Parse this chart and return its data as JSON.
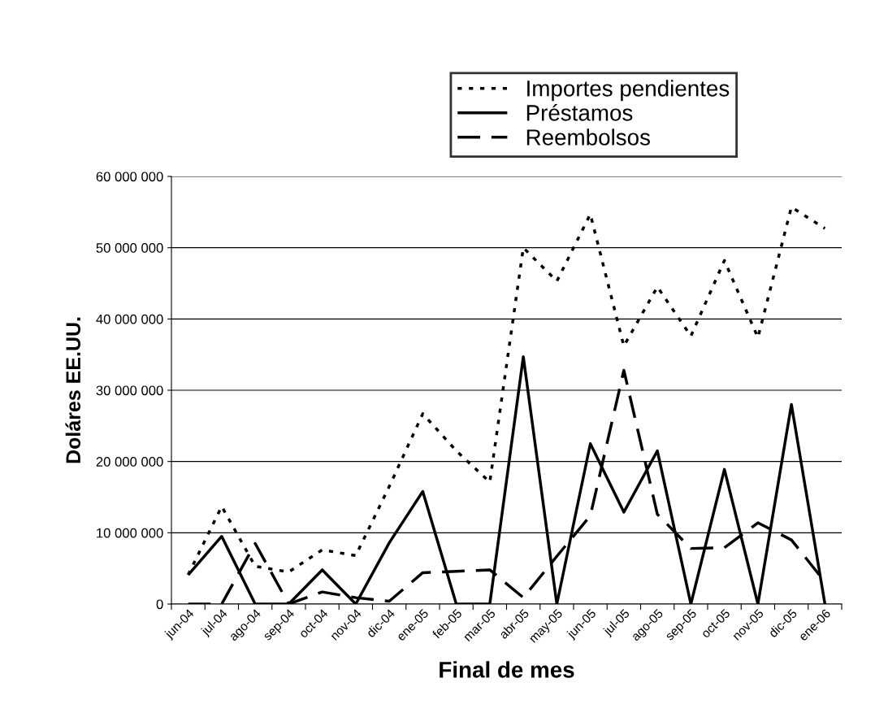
{
  "chart_data": {
    "type": "line",
    "xlabel": "Final de mes",
    "ylabel": "Doláres EE.UU.",
    "categories": [
      "jun-04",
      "jul-04",
      "ago-04",
      "sep-04",
      "oct-04",
      "nov-04",
      "dic-04",
      "ene-05",
      "feb-05",
      "mar-05",
      "abr-05",
      "may-05",
      "jun-05",
      "jul-05",
      "ago-05",
      "sep-05",
      "oct-05",
      "nov-05",
      "dic-05",
      "ene-06"
    ],
    "series": [
      {
        "name": "Importes pendientes",
        "color": "#000000",
        "line_style": "dotted",
        "values": [
          4100000,
          13700000,
          5300000,
          4500000,
          7600000,
          6800000,
          16500000,
          26700000,
          21500000,
          17100000,
          50000000,
          45300000,
          54700000,
          36200000,
          44500000,
          37600000,
          48200000,
          37400000,
          55700000,
          52700000
        ]
      },
      {
        "name": "Préstamos",
        "color": "#000000",
        "line_style": "solid",
        "values": [
          4100000,
          9500000,
          0,
          0,
          4800000,
          0,
          8600000,
          15800000,
          0,
          0,
          34700000,
          0,
          22500000,
          12900000,
          21500000,
          0,
          18900000,
          0,
          28000000,
          0
        ]
      },
      {
        "name": "Reembolsos",
        "color": "#000000",
        "line_style": "dashed",
        "values": [
          0,
          0,
          8500000,
          0,
          1700000,
          900000,
          400000,
          4400000,
          4600000,
          4800000,
          900000,
          6700000,
          12400000,
          32800000,
          12600000,
          7800000,
          7900000,
          11400000,
          9000000,
          3100000
        ]
      }
    ],
    "ylim": [
      0,
      60000000
    ],
    "yticks": [
      {
        "value": 0,
        "label": "0"
      },
      {
        "value": 10000000,
        "label": "10 000 000"
      },
      {
        "value": 20000000,
        "label": "20 000 000"
      },
      {
        "value": 30000000,
        "label": "30 000 000"
      },
      {
        "value": 40000000,
        "label": "40 000 000"
      },
      {
        "value": 50000000,
        "label": "50 000 000"
      },
      {
        "value": 60000000,
        "label": "60 000 000"
      }
    ],
    "grid": "y",
    "legend": "top",
    "marker": "none"
  }
}
